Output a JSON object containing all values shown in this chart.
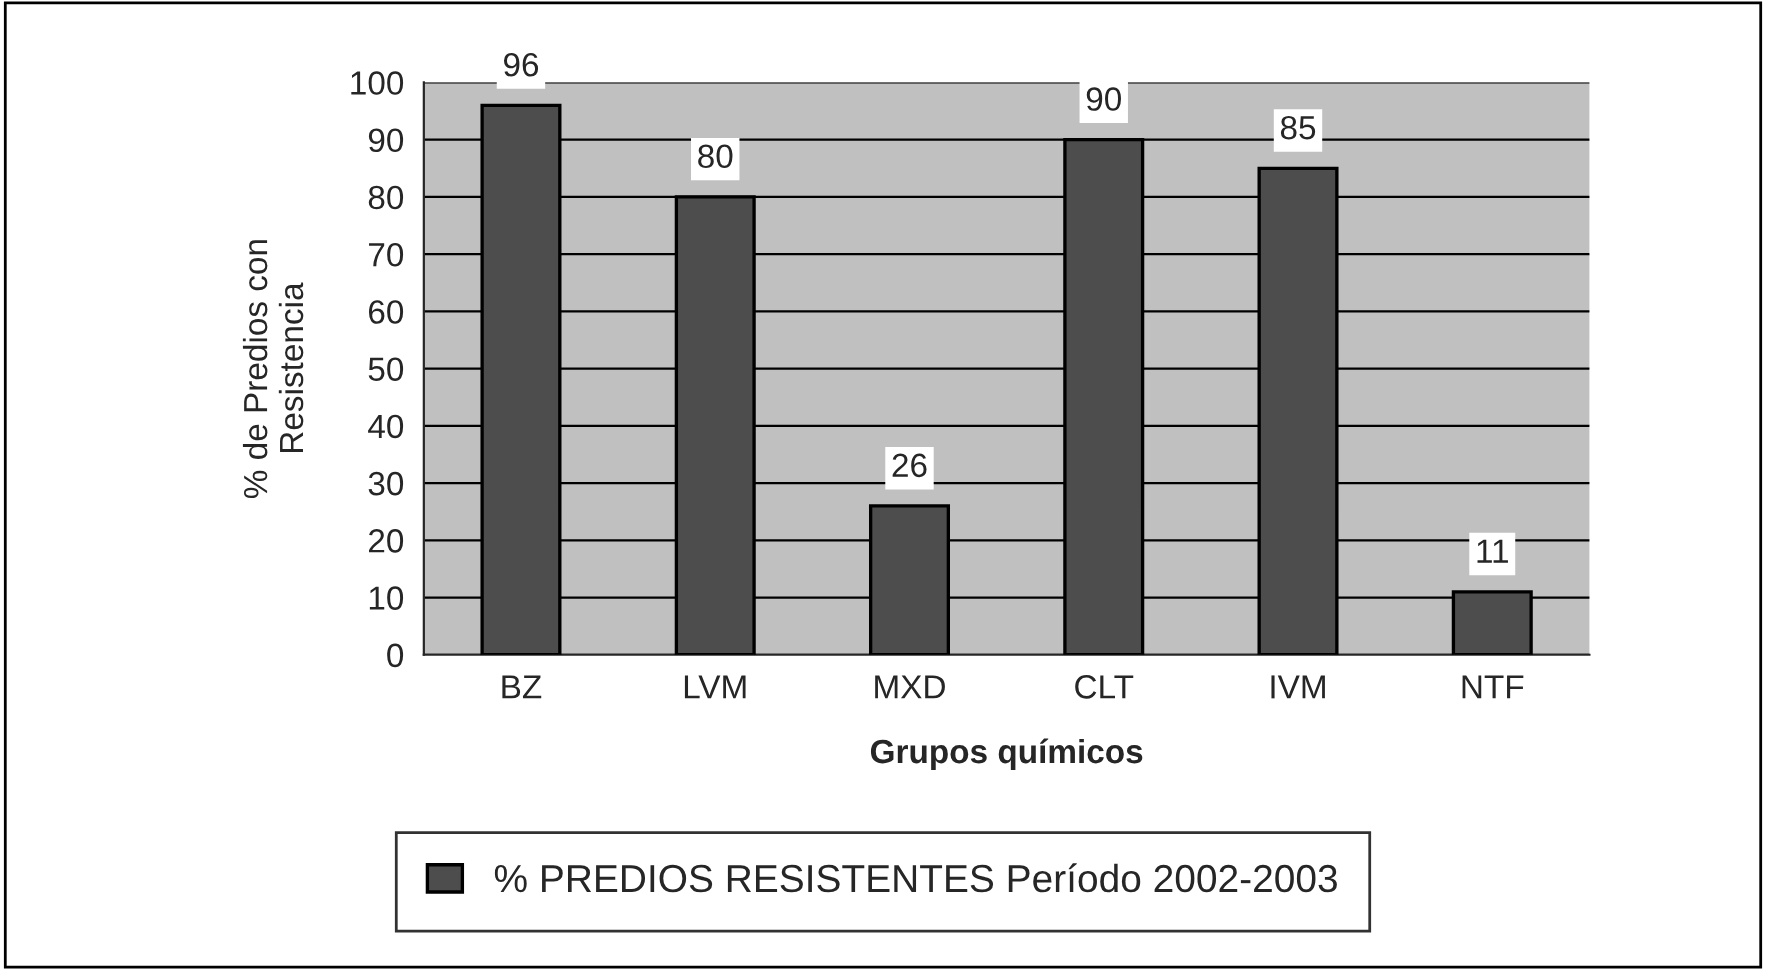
{
  "chart_data": {
    "type": "bar",
    "xlabel": "Grupos químicos",
    "ylabel": "% de Predios con\nResistencia",
    "categories": [
      "BZ",
      "LVM",
      "MXD",
      "CLT",
      "IVM",
      "NTF"
    ],
    "series": [
      {
        "name": "% PREDIOS RESISTENTES Período 2002-2003",
        "color": "#4d4d4d",
        "values": [
          96,
          80,
          26,
          90,
          85,
          11
        ]
      }
    ],
    "ylim": [
      0,
      100
    ],
    "yticks": [
      0,
      10,
      20,
      30,
      40,
      50,
      60,
      70,
      80,
      90,
      100
    ],
    "grid": "y",
    "legend": "bottom",
    "data_labels": true
  }
}
